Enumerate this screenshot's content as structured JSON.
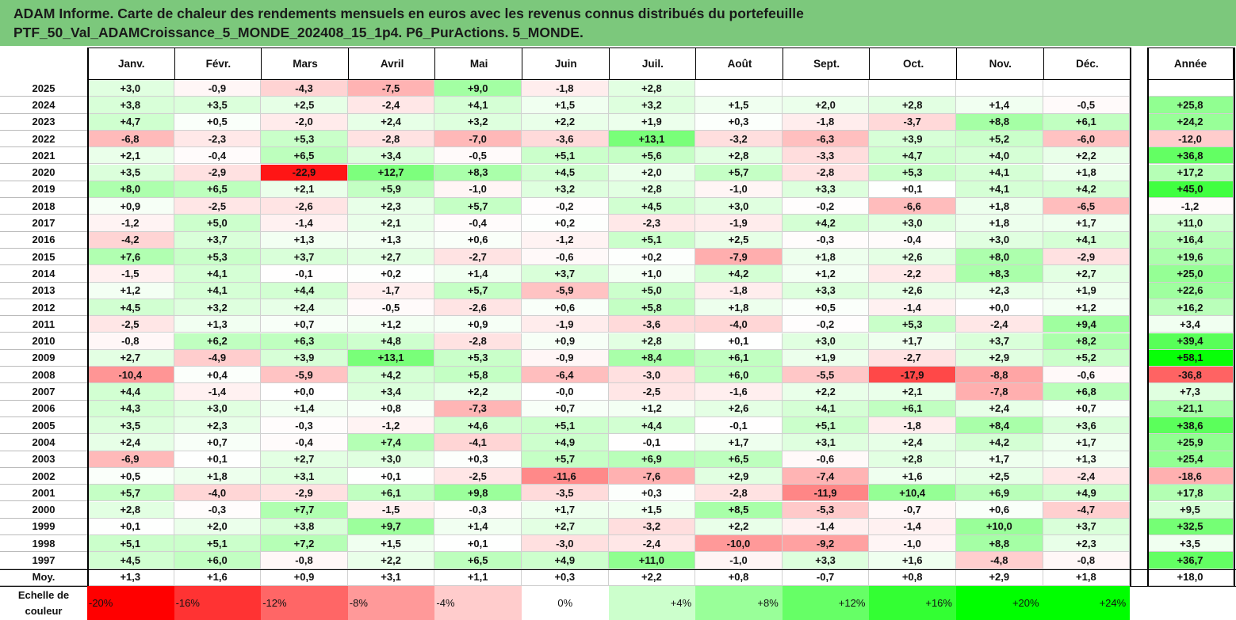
{
  "title": {
    "line1": "ADAM Informe. Carte de chaleur des rendements mensuels en euros avec les revenus connus distribués du portefeuille",
    "line2": "PTF_50_Val_ADAMCroissance_5_MONDE_202408_15_1p4. P6_PurActions. 5_MONDE."
  },
  "chart_data": {
    "type": "heatmap",
    "columns": [
      "Janv.",
      "Févr.",
      "Mars",
      "Avril",
      "Mai",
      "Juin",
      "Juil.",
      "Août",
      "Sept.",
      "Oct.",
      "Nov.",
      "Déc."
    ],
    "annual_label": "Année",
    "average_label": "Moy.",
    "rows": [
      {
        "year": "2025",
        "values": [
          "+3,0",
          "-0,9",
          "-4,3",
          "-7,5",
          "+9,0",
          "-1,8",
          "+2,8",
          "",
          "",
          "",
          "",
          ""
        ],
        "annual": ""
      },
      {
        "year": "2024",
        "values": [
          "+3,8",
          "+3,5",
          "+2,5",
          "-2,4",
          "+4,1",
          "+1,5",
          "+3,2",
          "+1,5",
          "+2,0",
          "+2,8",
          "+1,4",
          "-0,5"
        ],
        "annual": "+25,8"
      },
      {
        "year": "2023",
        "values": [
          "+4,7",
          "+0,5",
          "-2,0",
          "+2,4",
          "+3,2",
          "+2,2",
          "+1,9",
          "+0,3",
          "-1,8",
          "-3,7",
          "+8,8",
          "+6,1"
        ],
        "annual": "+24,2"
      },
      {
        "year": "2022",
        "values": [
          "-6,8",
          "-2,3",
          "+5,3",
          "-2,8",
          "-7,0",
          "-3,6",
          "+13,1",
          "-3,2",
          "-6,3",
          "+3,9",
          "+5,2",
          "-6,0"
        ],
        "annual": "-12,0"
      },
      {
        "year": "2021",
        "values": [
          "+2,1",
          "-0,4",
          "+6,5",
          "+3,4",
          "-0,5",
          "+5,1",
          "+5,6",
          "+2,8",
          "-3,3",
          "+4,7",
          "+4,0",
          "+2,2"
        ],
        "annual": "+36,8"
      },
      {
        "year": "2020",
        "values": [
          "+3,5",
          "-2,9",
          "-22,9",
          "+12,7",
          "+8,3",
          "+4,5",
          "+2,0",
          "+5,7",
          "-2,8",
          "+5,3",
          "+4,1",
          "+1,8"
        ],
        "annual": "+17,2"
      },
      {
        "year": "2019",
        "values": [
          "+8,0",
          "+6,5",
          "+2,1",
          "+5,9",
          "-1,0",
          "+3,2",
          "+2,8",
          "-1,0",
          "+3,3",
          "+0,1",
          "+4,1",
          "+4,2"
        ],
        "annual": "+45,0"
      },
      {
        "year": "2018",
        "values": [
          "+0,9",
          "-2,5",
          "-2,6",
          "+2,3",
          "+5,7",
          "-0,2",
          "+4,5",
          "+3,0",
          "-0,2",
          "-6,6",
          "+1,8",
          "-6,5"
        ],
        "annual": "-1,2"
      },
      {
        "year": "2017",
        "values": [
          "-1,2",
          "+5,0",
          "-1,4",
          "+2,1",
          "-0,4",
          "+0,2",
          "-2,3",
          "-1,9",
          "+4,2",
          "+3,0",
          "+1,8",
          "+1,7"
        ],
        "annual": "+11,0"
      },
      {
        "year": "2016",
        "values": [
          "-4,2",
          "+3,7",
          "+1,3",
          "+1,3",
          "+0,6",
          "-1,2",
          "+5,1",
          "+2,5",
          "-0,3",
          "-0,4",
          "+3,0",
          "+4,1"
        ],
        "annual": "+16,4"
      },
      {
        "year": "2015",
        "values": [
          "+7,6",
          "+5,3",
          "+3,7",
          "+2,7",
          "-2,7",
          "-0,6",
          "+0,2",
          "-7,9",
          "+1,8",
          "+2,6",
          "+8,0",
          "-2,9"
        ],
        "annual": "+19,6"
      },
      {
        "year": "2014",
        "values": [
          "-1,5",
          "+4,1",
          "-0,1",
          "+0,2",
          "+1,4",
          "+3,7",
          "+1,0",
          "+4,2",
          "+1,2",
          "-2,2",
          "+8,3",
          "+2,7"
        ],
        "annual": "+25,0"
      },
      {
        "year": "2013",
        "values": [
          "+1,2",
          "+4,1",
          "+4,4",
          "-1,7",
          "+5,7",
          "-5,9",
          "+5,0",
          "-1,8",
          "+3,3",
          "+2,6",
          "+2,3",
          "+1,9"
        ],
        "annual": "+22,6"
      },
      {
        "year": "2012",
        "values": [
          "+4,5",
          "+3,2",
          "+2,4",
          "-0,5",
          "-2,6",
          "+0,6",
          "+5,8",
          "+1,8",
          "+0,5",
          "-1,4",
          "+0,0",
          "+1,2"
        ],
        "annual": "+16,2"
      },
      {
        "year": "2011",
        "values": [
          "-2,5",
          "+1,3",
          "+0,7",
          "+1,2",
          "+0,9",
          "-1,9",
          "-3,6",
          "-4,0",
          "-0,2",
          "+5,3",
          "-2,4",
          "+9,4"
        ],
        "annual": "+3,4"
      },
      {
        "year": "2010",
        "values": [
          "-0,8",
          "+6,2",
          "+6,3",
          "+4,8",
          "-2,8",
          "+0,9",
          "+2,8",
          "+0,1",
          "+3,0",
          "+1,7",
          "+3,7",
          "+8,2"
        ],
        "annual": "+39,4"
      },
      {
        "year": "2009",
        "values": [
          "+2,7",
          "-4,9",
          "+3,9",
          "+13,1",
          "+5,3",
          "-0,9",
          "+8,4",
          "+6,1",
          "+1,9",
          "-2,7",
          "+2,9",
          "+5,2"
        ],
        "annual": "+58,1"
      },
      {
        "year": "2008",
        "values": [
          "-10,4",
          "+0,4",
          "-5,9",
          "+4,2",
          "+5,8",
          "-6,4",
          "-3,0",
          "+6,0",
          "-5,5",
          "-17,9",
          "-8,8",
          "-0,6"
        ],
        "annual": "-36,8"
      },
      {
        "year": "2007",
        "values": [
          "+4,4",
          "-1,4",
          "+0,0",
          "+3,4",
          "+2,2",
          "-0,0",
          "-2,5",
          "-1,6",
          "+2,2",
          "+2,1",
          "-7,8",
          "+6,8"
        ],
        "annual": "+7,3"
      },
      {
        "year": "2006",
        "values": [
          "+4,3",
          "+3,0",
          "+1,4",
          "+0,8",
          "-7,3",
          "+0,7",
          "+1,2",
          "+2,6",
          "+4,1",
          "+6,1",
          "+2,4",
          "+0,7"
        ],
        "annual": "+21,1"
      },
      {
        "year": "2005",
        "values": [
          "+3,5",
          "+2,3",
          "-0,3",
          "-1,2",
          "+4,6",
          "+5,1",
          "+4,4",
          "-0,1",
          "+5,1",
          "-1,8",
          "+8,4",
          "+3,6"
        ],
        "annual": "+38,6"
      },
      {
        "year": "2004",
        "values": [
          "+2,4",
          "+0,7",
          "-0,4",
          "+7,4",
          "-4,1",
          "+4,9",
          "-0,1",
          "+1,7",
          "+3,1",
          "+2,4",
          "+4,2",
          "+1,7"
        ],
        "annual": "+25,9"
      },
      {
        "year": "2003",
        "values": [
          "-6,9",
          "+0,1",
          "+2,7",
          "+3,0",
          "+0,3",
          "+5,7",
          "+6,9",
          "+6,5",
          "-0,6",
          "+2,8",
          "+1,7",
          "+1,3"
        ],
        "annual": "+25,4"
      },
      {
        "year": "2002",
        "values": [
          "+0,5",
          "+1,8",
          "+3,1",
          "+0,1",
          "-2,5",
          "-11,6",
          "-7,6",
          "+2,9",
          "-7,4",
          "+1,6",
          "+2,5",
          "-2,4"
        ],
        "annual": "-18,6"
      },
      {
        "year": "2001",
        "values": [
          "+5,7",
          "-4,0",
          "-2,9",
          "+6,1",
          "+9,8",
          "-3,5",
          "+0,3",
          "-2,8",
          "-11,9",
          "+10,4",
          "+6,9",
          "+4,9"
        ],
        "annual": "+17,8"
      },
      {
        "year": "2000",
        "values": [
          "+2,8",
          "-0,3",
          "+7,7",
          "-1,5",
          "-0,3",
          "+1,7",
          "+1,5",
          "+8,5",
          "-5,3",
          "-0,7",
          "+0,6",
          "-4,7"
        ],
        "annual": "+9,5"
      },
      {
        "year": "1999",
        "values": [
          "+0,1",
          "+2,0",
          "+3,8",
          "+9,7",
          "+1,4",
          "+2,7",
          "-3,2",
          "+2,2",
          "-1,4",
          "-1,4",
          "+10,0",
          "+3,7"
        ],
        "annual": "+32,5"
      },
      {
        "year": "1998",
        "values": [
          "+5,1",
          "+5,1",
          "+7,2",
          "+1,5",
          "+0,1",
          "-3,0",
          "-2,4",
          "-10,0",
          "-9,2",
          "-1,0",
          "+8,8",
          "+2,3"
        ],
        "annual": "+3,5"
      },
      {
        "year": "1997",
        "values": [
          "+4,5",
          "+6,0",
          "-0,8",
          "+2,2",
          "+6,5",
          "+4,9",
          "+11,0",
          "-1,0",
          "+3,3",
          "+1,6",
          "-4,8",
          "-0,8"
        ],
        "annual": "+36,7"
      }
    ],
    "average": {
      "values": [
        "+1,3",
        "+1,6",
        "+0,9",
        "+3,1",
        "+1,1",
        "+0,3",
        "+2,2",
        "+0,8",
        "-0,7",
        "+0,8",
        "+2,9",
        "+1,8"
      ],
      "annual": "+18,0"
    },
    "scale": {
      "label_line1": "Echelle de",
      "label_line2": "couleur",
      "steps": [
        "-20%",
        "-16%",
        "-12%",
        "-8%",
        "-4%",
        "0%",
        "+4%",
        "+8%",
        "+12%",
        "+16%",
        "+20%",
        "+24%"
      ]
    }
  },
  "colors": {
    "title_background": "#7cc87c",
    "negative_max": "#ff0000",
    "neutral": "#ffffff",
    "positive_max": "#00ff00"
  }
}
